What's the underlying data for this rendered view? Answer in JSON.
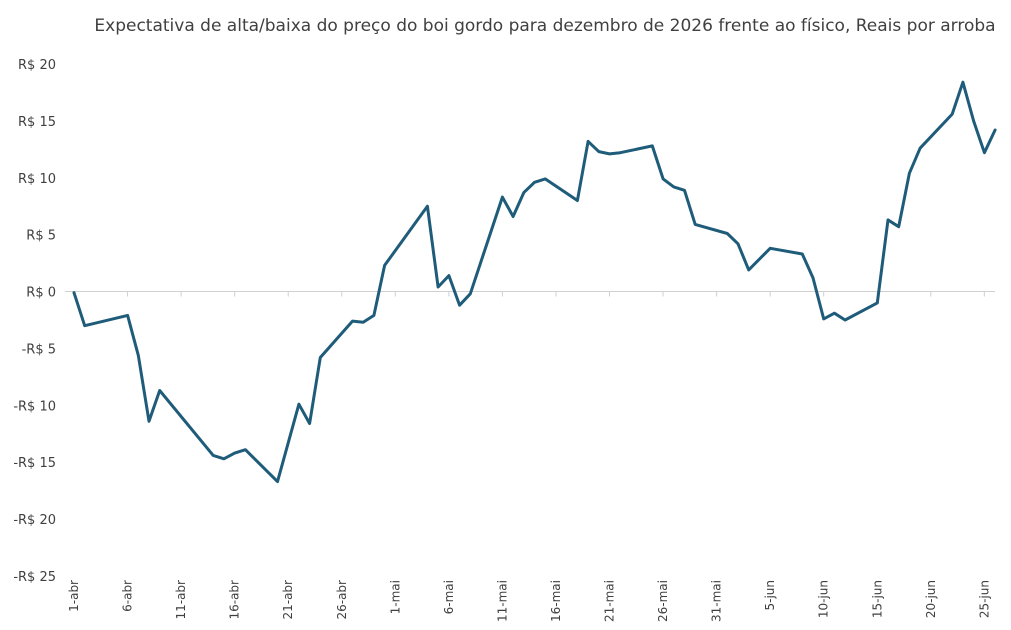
{
  "chart_data": {
    "type": "line",
    "title": "Expectativa de alta/baixa do preço do boi gordo para dezembro de 2026 frente ao físico, Reais por arroba",
    "xlabel": "",
    "ylabel": "",
    "ylim": [
      -25,
      20
    ],
    "y_ticks": [
      20,
      15,
      10,
      5,
      0,
      -5,
      -10,
      -15,
      -20,
      -25
    ],
    "y_tick_labels": [
      "R$ 20",
      "R$ 15",
      "R$ 10",
      "R$ 5",
      "R$ 0",
      "-R$ 5",
      "-R$ 10",
      "-R$ 15",
      "-R$ 20",
      "-R$ 25"
    ],
    "x_range": [
      "2026-04-01",
      "2026-06-27"
    ],
    "x_ticks": [
      "2026-04-01",
      "2026-04-06",
      "2026-04-11",
      "2026-04-16",
      "2026-04-21",
      "2026-04-26",
      "2026-05-01",
      "2026-05-06",
      "2026-05-11",
      "2026-05-16",
      "2026-05-21",
      "2026-05-26",
      "2026-05-31",
      "2026-06-05",
      "2026-06-10",
      "2026-06-15",
      "2026-06-20",
      "2026-06-25"
    ],
    "x_tick_labels": [
      "1-abr",
      "6-abr",
      "11-abr",
      "16-abr",
      "21-abr",
      "26-abr",
      "1-mai",
      "6-mai",
      "11-mai",
      "16-mai",
      "21-mai",
      "26-mai",
      "31-mai",
      "5-jun",
      "10-jun",
      "15-jun",
      "20-jun",
      "25-jun"
    ],
    "grid": false,
    "legend": "none",
    "line_color": "#1f5c7a",
    "series": [
      {
        "x": [
          "2026-04-01",
          "2026-04-02",
          "2026-04-06",
          "2026-04-07",
          "2026-04-08",
          "2026-04-09",
          "2026-04-14",
          "2026-04-15",
          "2026-04-16",
          "2026-04-17",
          "2026-04-20",
          "2026-04-22",
          "2026-04-23",
          "2026-04-24",
          "2026-04-27",
          "2026-04-28",
          "2026-04-29",
          "2026-04-30",
          "2026-05-04",
          "2026-05-05",
          "2026-05-06",
          "2026-05-07",
          "2026-05-08",
          "2026-05-11",
          "2026-05-12",
          "2026-05-13",
          "2026-05-14",
          "2026-05-15",
          "2026-05-18",
          "2026-05-19",
          "2026-05-20",
          "2026-05-21",
          "2026-05-22",
          "2026-05-25",
          "2026-05-26",
          "2026-05-27",
          "2026-05-28",
          "2026-05-29",
          "2026-06-01",
          "2026-06-02",
          "2026-06-03",
          "2026-06-05",
          "2026-06-08",
          "2026-06-09",
          "2026-06-10",
          "2026-06-11",
          "2026-06-12",
          "2026-06-15",
          "2026-06-16",
          "2026-06-17",
          "2026-06-18",
          "2026-06-19",
          "2026-06-22",
          "2026-06-23",
          "2026-06-24",
          "2026-06-25",
          "2026-06-26"
        ],
        "values": [
          -0.1,
          -3.0,
          -2.1,
          -5.6,
          -11.4,
          -8.7,
          -14.4,
          -14.7,
          -14.2,
          -13.9,
          -16.7,
          -9.9,
          -11.6,
          -5.8,
          -2.6,
          -2.7,
          -2.1,
          2.3,
          7.5,
          0.4,
          1.4,
          -1.2,
          -0.2,
          8.3,
          6.6,
          8.7,
          9.6,
          9.9,
          8.0,
          13.2,
          12.3,
          12.1,
          12.2,
          12.8,
          9.9,
          9.2,
          8.9,
          5.9,
          5.1,
          4.2,
          1.9,
          3.8,
          3.3,
          1.2,
          -2.4,
          -1.9,
          -2.5,
          -1.0,
          6.3,
          5.7,
          10.4,
          12.6,
          15.6,
          18.4,
          15.0,
          12.2,
          14.2
        ]
      }
    ]
  }
}
